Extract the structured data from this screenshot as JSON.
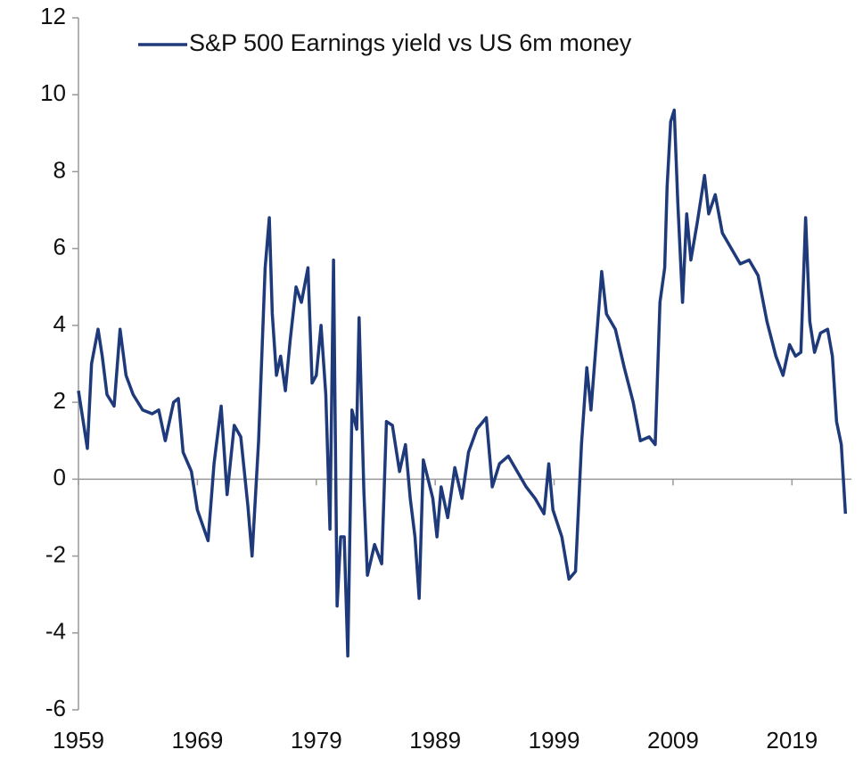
{
  "chart_data": {
    "type": "line",
    "x": [
      1959,
      1959.4,
      1959.75,
      1960.1,
      1960.65,
      1961,
      1961.4,
      1962,
      1962.5,
      1963,
      1963.6,
      1964.4,
      1965.2,
      1965.75,
      1966.3,
      1967,
      1967.4,
      1967.8,
      1968.5,
      1969,
      1969.9,
      1970.4,
      1971,
      1971.5,
      1972.1,
      1972.65,
      1973.25,
      1973.6,
      1974.15,
      1974.7,
      1975.05,
      1975.3,
      1975.65,
      1976,
      1976.4,
      1976.8,
      1977.3,
      1977.75,
      1978.3,
      1978.65,
      1979,
      1979.4,
      1979.8,
      1980.15,
      1980.45,
      1980.75,
      1981.05,
      1981.35,
      1981.65,
      1982,
      1982.4,
      1982.6,
      1983,
      1983.3,
      1983.9,
      1984.5,
      1984.9,
      1985.4,
      1986,
      1986.5,
      1986.9,
      1987.3,
      1987.65,
      1988,
      1988.8,
      1989.15,
      1989.5,
      1990.05,
      1990.65,
      1991.25,
      1991.8,
      1992.5,
      1993.3,
      1993.8,
      1994.4,
      1995.15,
      1995.9,
      1996.65,
      1997.4,
      1998.15,
      1998.55,
      1998.9,
      1999.65,
      2000.25,
      2000.8,
      2001.3,
      2001.75,
      2002.1,
      2002.5,
      2003,
      2003.4,
      2004.15,
      2004.9,
      2005.65,
      2006.25,
      2007,
      2007.5,
      2007.9,
      2008.3,
      2008.5,
      2008.8,
      2009.1,
      2009.4,
      2009.8,
      2010.15,
      2010.5,
      2011.05,
      2011.65,
      2012,
      2012.55,
      2013.15,
      2013.9,
      2014.65,
      2015.4,
      2016.15,
      2016.9,
      2017.65,
      2018.25,
      2018.8,
      2019.3,
      2019.75,
      2020.15,
      2020.5,
      2020.9,
      2021.4,
      2022,
      2022.4,
      2022.75,
      2023.15,
      2023.5
    ],
    "series": [
      {
        "name": "S&P 500 Earnings yield vs US 6m money",
        "color": "#1f3a7a",
        "values": [
          2.3,
          1.5,
          0.8,
          3.0,
          3.9,
          3.2,
          2.2,
          1.9,
          3.9,
          2.7,
          2.2,
          1.8,
          1.7,
          1.8,
          1.0,
          2.0,
          2.1,
          0.7,
          0.2,
          -0.8,
          -1.6,
          0.4,
          1.9,
          -0.4,
          1.4,
          1.1,
          -0.7,
          -2.0,
          1.0,
          5.5,
          6.8,
          4.3,
          2.7,
          3.2,
          2.3,
          3.6,
          5.0,
          4.6,
          5.5,
          2.5,
          2.7,
          4.0,
          2.2,
          -1.3,
          5.7,
          -3.3,
          -1.5,
          -1.5,
          -4.6,
          1.8,
          1.3,
          4.2,
          -0.3,
          -2.5,
          -1.7,
          -2.2,
          1.5,
          1.4,
          0.2,
          0.9,
          -0.5,
          -1.5,
          -3.1,
          0.5,
          -0.5,
          -1.5,
          -0.2,
          -1.0,
          0.3,
          -0.5,
          0.7,
          1.3,
          1.6,
          -0.2,
          0.4,
          0.6,
          0.2,
          -0.2,
          -0.5,
          -0.9,
          0.4,
          -0.8,
          -1.5,
          -2.6,
          -2.4,
          0.9,
          2.9,
          1.8,
          3.4,
          5.4,
          4.3,
          3.9,
          2.9,
          2.0,
          1.0,
          1.1,
          0.9,
          4.6,
          5.5,
          7.6,
          9.3,
          9.6,
          7.2,
          4.6,
          6.9,
          5.7,
          6.7,
          7.9,
          6.9,
          7.4,
          6.4,
          6.0,
          5.6,
          5.7,
          5.3,
          4.1,
          3.2,
          2.7,
          3.5,
          3.2,
          3.3,
          6.8,
          4.1,
          3.3,
          3.8,
          3.9,
          3.2,
          1.5,
          0.9,
          -0.9
        ]
      }
    ],
    "xlim": [
      1959,
      2024
    ],
    "xticks": [
      1959,
      1969,
      1979,
      1989,
      1999,
      2009,
      2019
    ],
    "ylim": [
      -6,
      12
    ],
    "yticks": [
      -6,
      -4,
      -2,
      0,
      2,
      4,
      6,
      8,
      10,
      12
    ],
    "legend": "top"
  }
}
